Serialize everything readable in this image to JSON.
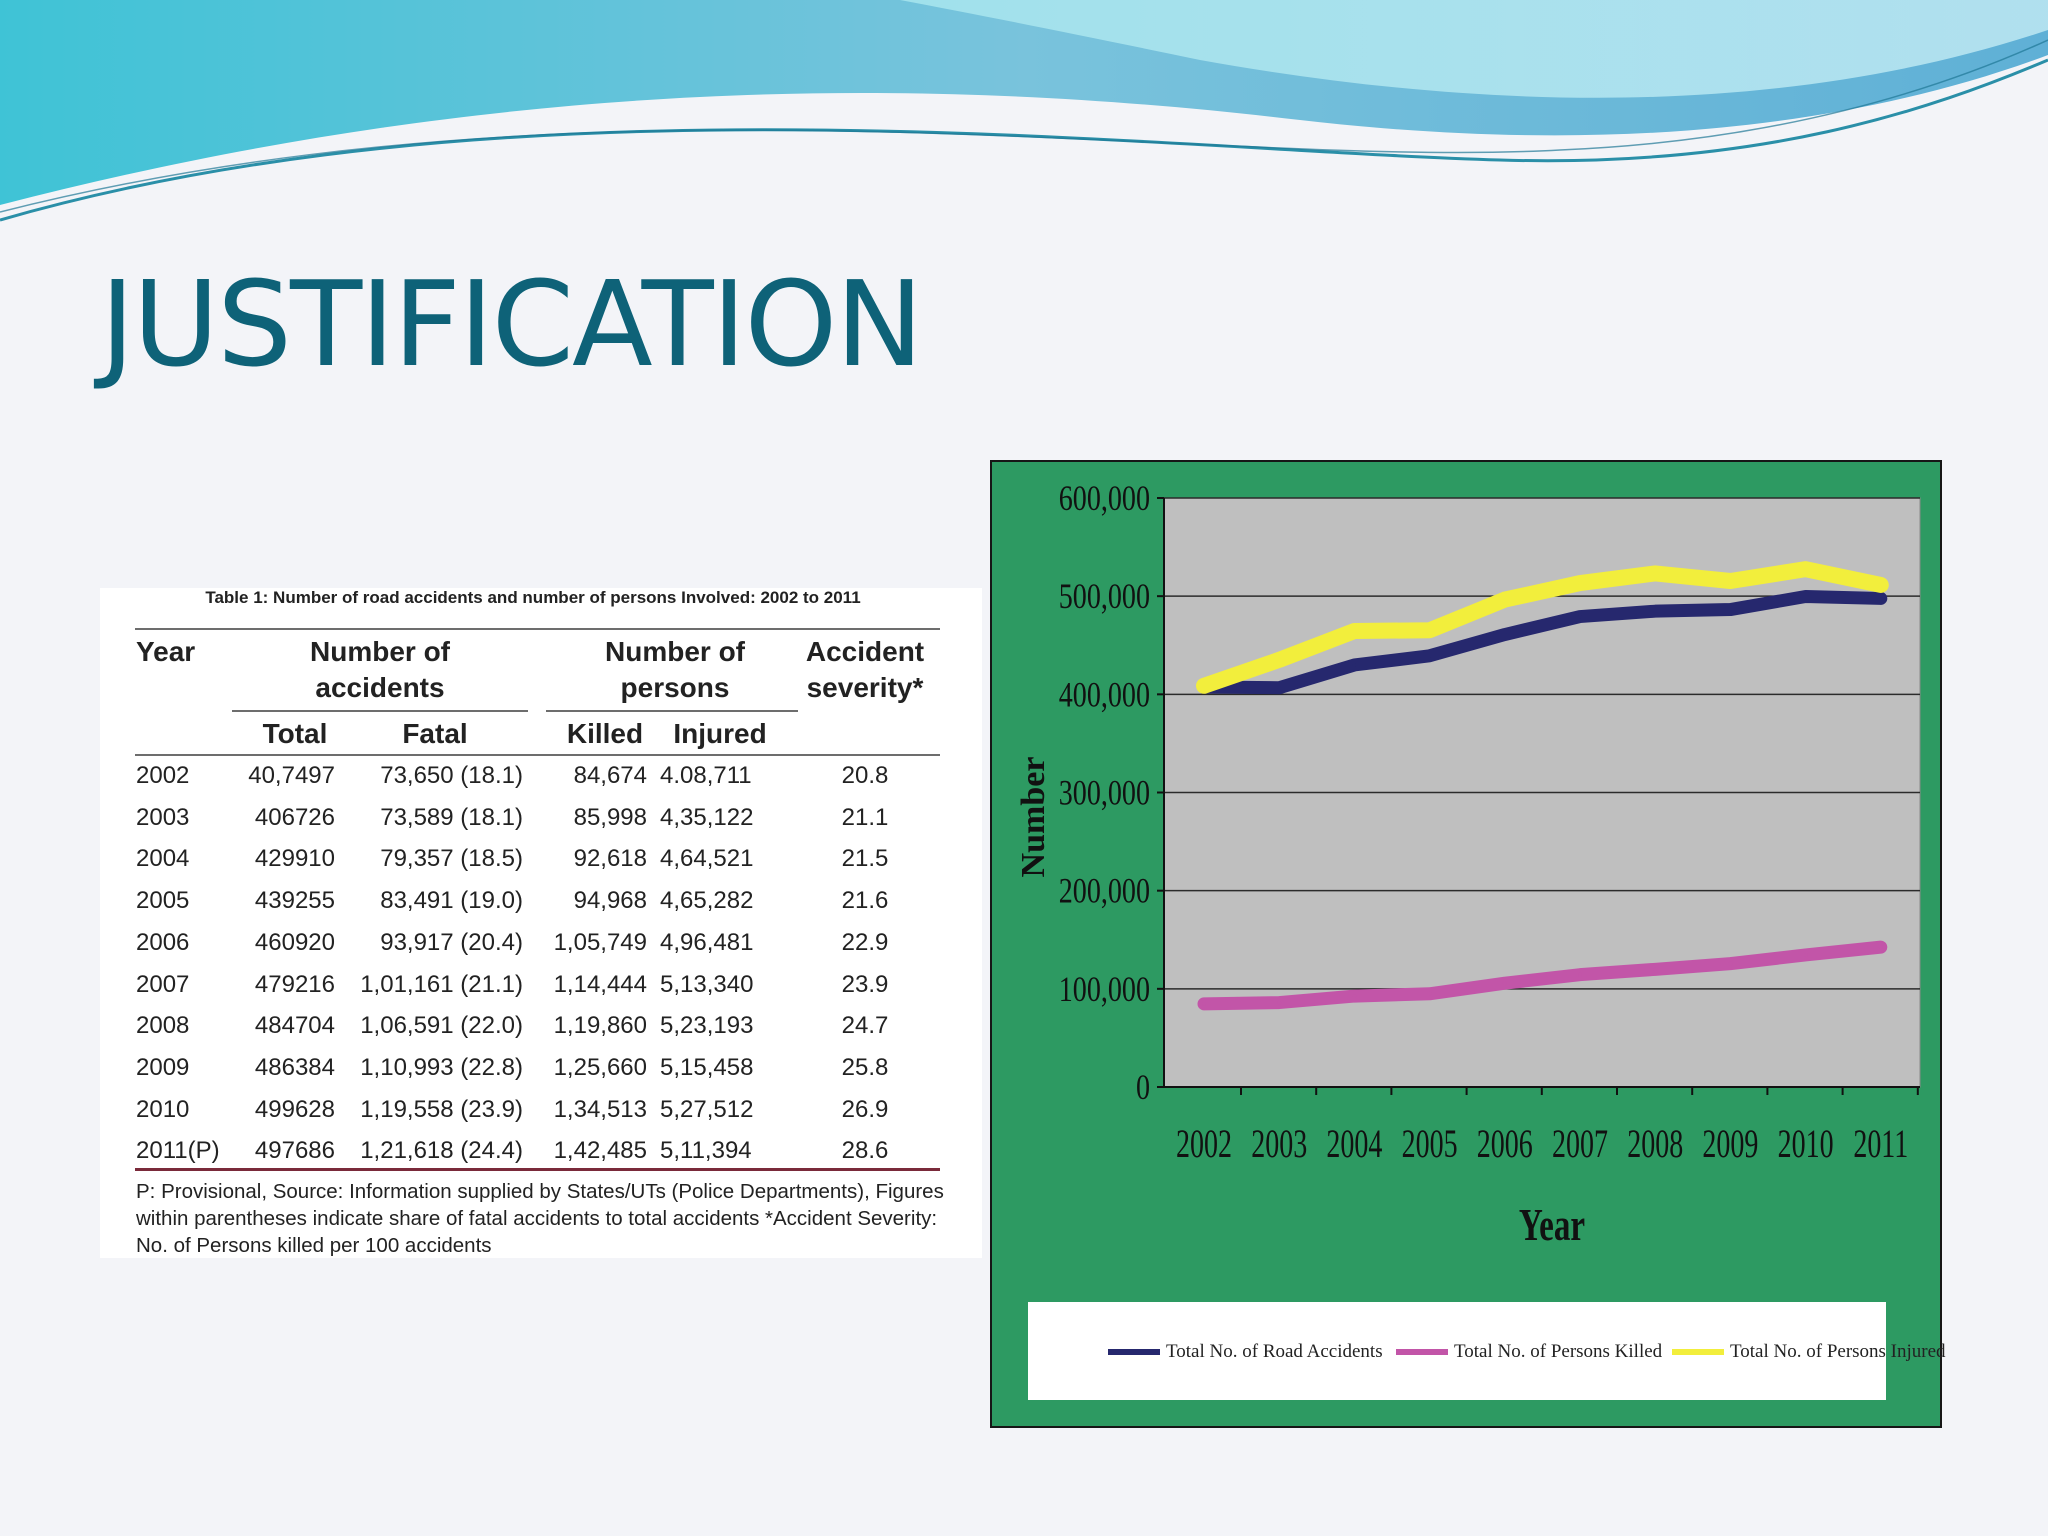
{
  "slide": {
    "title": "JUSTIFICATION"
  },
  "table": {
    "caption": "Table 1: Number of road accidents and number of persons Involved: 2002 to 2011",
    "headers": {
      "year": "Year",
      "accidents_group": "Number of accidents",
      "persons_group": "Number of persons",
      "severity": "Accident severity*",
      "total": "Total",
      "fatal": "Fatal",
      "killed": "Killed",
      "injured": "Injured"
    },
    "rows": [
      {
        "year": "2002",
        "total": "40,7497",
        "fatal": "73,650 (18.1)",
        "killed": "84,674",
        "injured": "4.08,711",
        "severity": "20.8"
      },
      {
        "year": "2003",
        "total": "406726",
        "fatal": "73,589 (18.1)",
        "killed": "85,998",
        "injured": "4,35,122",
        "severity": "21.1"
      },
      {
        "year": "2004",
        "total": "429910",
        "fatal": "79,357 (18.5)",
        "killed": "92,618",
        "injured": "4,64,521",
        "severity": "21.5"
      },
      {
        "year": "2005",
        "total": "439255",
        "fatal": "83,491 (19.0)",
        "killed": "94,968",
        "injured": "4,65,282",
        "severity": "21.6"
      },
      {
        "year": "2006",
        "total": "460920",
        "fatal": "93,917 (20.4)",
        "killed": "1,05,749",
        "injured": "4,96,481",
        "severity": "22.9"
      },
      {
        "year": "2007",
        "total": "479216",
        "fatal": "1,01,161 (21.1)",
        "killed": "1,14,444",
        "injured": "5,13,340",
        "severity": "23.9"
      },
      {
        "year": "2008",
        "total": "484704",
        "fatal": "1,06,591 (22.0)",
        "killed": "1,19,860",
        "injured": "5,23,193",
        "severity": "24.7"
      },
      {
        "year": "2009",
        "total": "486384",
        "fatal": "1,10,993 (22.8)",
        "killed": "1,25,660",
        "injured": "5,15,458",
        "severity": "25.8"
      },
      {
        "year": "2010",
        "total": "499628",
        "fatal": "1,19,558 (23.9)",
        "killed": "1,34,513",
        "injured": "5,27,512",
        "severity": "26.9"
      },
      {
        "year": "2011(P)",
        "total": "497686",
        "fatal": "1,21,618 (24.4)",
        "killed": "1,42,485",
        "injured": "5,11,394",
        "severity": "28.6"
      }
    ],
    "note": "P: Provisional, Source: Information supplied by States/UTs (Police Departments), Figures within parentheses indicate share of fatal accidents to total accidents *Accident Severity: No. of Persons killed per 100 accidents"
  },
  "chart_data": {
    "type": "line",
    "title": "",
    "xlabel": "Year",
    "ylabel": "Number",
    "categories": [
      "2002",
      "2003",
      "2004",
      "2005",
      "2006",
      "2007",
      "2008",
      "2009",
      "2010",
      "2011"
    ],
    "ylim": [
      0,
      600000
    ],
    "yticks": [
      0,
      100000,
      200000,
      300000,
      400000,
      500000,
      600000
    ],
    "ytick_labels": [
      "0",
      "100,000",
      "200,000",
      "300,000",
      "400,000",
      "500,000",
      "600,000"
    ],
    "grid": true,
    "plot_background": "#bfbfbf",
    "panel_background": "#2d9a62",
    "legend_position": "bottom",
    "series": [
      {
        "name": "Total No. of Road Accidents",
        "color": "#26286e",
        "values": [
          407497,
          406726,
          429910,
          439255,
          460920,
          479216,
          484704,
          486384,
          499628,
          497686
        ]
      },
      {
        "name": "Total No. of Persons Killed",
        "color": "#c255a8",
        "values": [
          84674,
          85998,
          92618,
          94968,
          105749,
          114444,
          119860,
          125660,
          134513,
          142485
        ]
      },
      {
        "name": "Total No. of Persons Injured",
        "color": "#f2ee3c",
        "values": [
          408711,
          435122,
          464521,
          465282,
          496481,
          513340,
          523193,
          515458,
          527512,
          511394
        ]
      }
    ]
  }
}
